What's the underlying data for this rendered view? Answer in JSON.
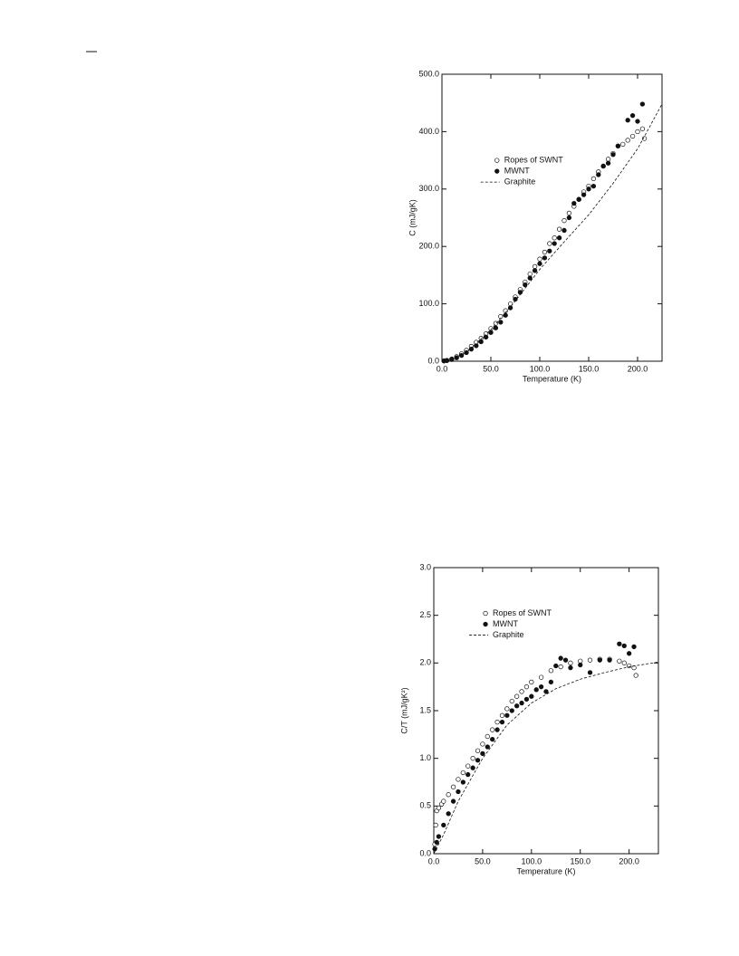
{
  "chart_data": [
    {
      "type": "scatter",
      "xlabel": "Temperature (K)",
      "ylabel": "C (mJ/gK)",
      "xlim": [
        0,
        225
      ],
      "ylim": [
        0,
        500
      ],
      "xticks": [
        {
          "value": 0,
          "label": "0.0"
        },
        {
          "value": 50,
          "label": "50.0"
        },
        {
          "value": 100,
          "label": "100.0"
        },
        {
          "value": 150,
          "label": "150.0"
        },
        {
          "value": 200,
          "label": "200.0"
        }
      ],
      "yticks": [
        {
          "value": 0,
          "label": "0.0"
        },
        {
          "value": 100,
          "label": "100.0"
        },
        {
          "value": 200,
          "label": "200.0"
        },
        {
          "value": 300,
          "label": "300.0"
        },
        {
          "value": 400,
          "label": "400.0"
        },
        {
          "value": 500,
          "label": "500.0"
        }
      ],
      "legend": "upper left",
      "series": [
        {
          "name": "Ropes of SWNT",
          "color": "#111111",
          "marker": "open-circle",
          "x": [
            2,
            5,
            10,
            15,
            20,
            25,
            30,
            35,
            40,
            45,
            50,
            55,
            60,
            65,
            70,
            75,
            80,
            85,
            90,
            95,
            100,
            105,
            110,
            115,
            120,
            125,
            130,
            135,
            140,
            145,
            150,
            155,
            160,
            165,
            170,
            175,
            180,
            185,
            190,
            195,
            200,
            205,
            207
          ],
          "values": [
            0.5,
            1.5,
            4,
            8,
            13,
            19,
            26,
            33,
            40,
            48,
            57,
            66,
            78,
            88,
            100,
            112,
            125,
            138,
            152,
            165,
            178,
            190,
            205,
            215,
            230,
            245,
            258,
            270,
            282,
            295,
            305,
            318,
            330,
            340,
            352,
            362,
            375,
            378,
            385,
            392,
            400,
            405,
            388
          ]
        },
        {
          "name": "MWNT",
          "color": "#111111",
          "marker": "filled-circle",
          "x": [
            2,
            5,
            10,
            15,
            20,
            25,
            30,
            35,
            40,
            45,
            50,
            55,
            60,
            65,
            70,
            75,
            80,
            85,
            90,
            95,
            100,
            105,
            110,
            115,
            120,
            125,
            130,
            135,
            140,
            145,
            150,
            155,
            160,
            165,
            170,
            175,
            180,
            190,
            195,
            200,
            205
          ],
          "values": [
            0.5,
            1,
            3,
            6,
            10,
            15,
            21,
            27,
            34,
            42,
            50,
            58,
            68,
            80,
            93,
            108,
            120,
            133,
            145,
            158,
            170,
            180,
            192,
            205,
            215,
            228,
            250,
            275,
            282,
            290,
            300,
            305,
            325,
            340,
            345,
            360,
            375,
            420,
            428,
            418,
            448
          ]
        },
        {
          "name": "Graphite",
          "color": "#111111",
          "marker": "dashed-line",
          "x": [
            0,
            25,
            50,
            75,
            100,
            125,
            150,
            175,
            200,
            225
          ],
          "values": [
            0,
            15,
            55,
            105,
            160,
            208,
            255,
            310,
            370,
            448
          ]
        }
      ]
    },
    {
      "type": "scatter",
      "xlabel": "Temperature (K)",
      "ylabel": "C/T (mJ/gK²)",
      "xlim": [
        0,
        230
      ],
      "ylim": [
        0,
        3
      ],
      "xticks": [
        {
          "value": 0,
          "label": "0.0"
        },
        {
          "value": 50,
          "label": "50.0"
        },
        {
          "value": 100,
          "label": "100.0"
        },
        {
          "value": 150,
          "label": "150.0"
        },
        {
          "value": 200,
          "label": "200.0"
        }
      ],
      "yticks": [
        {
          "value": 0,
          "label": "0.0"
        },
        0.5,
        {
          "value": 1,
          "label": "1.0"
        },
        1.5,
        {
          "value": 2,
          "label": "2.0"
        },
        2.5,
        {
          "value": 3,
          "label": "3.0"
        }
      ],
      "legend": "upper left",
      "series": [
        {
          "name": "Ropes of SWNT",
          "color": "#111111",
          "marker": "open-circle",
          "x": [
            1,
            2,
            3,
            5,
            8,
            10,
            15,
            20,
            25,
            30,
            35,
            40,
            45,
            50,
            55,
            60,
            65,
            70,
            75,
            80,
            85,
            90,
            95,
            100,
            110,
            120,
            130,
            140,
            150,
            160,
            170,
            180,
            190,
            195,
            200,
            205,
            207
          ],
          "values": [
            0.1,
            0.3,
            0.45,
            0.48,
            0.52,
            0.55,
            0.62,
            0.7,
            0.78,
            0.85,
            0.92,
            1.0,
            1.08,
            1.15,
            1.23,
            1.3,
            1.38,
            1.45,
            1.52,
            1.6,
            1.65,
            1.7,
            1.75,
            1.8,
            1.85,
            1.92,
            1.96,
            2.0,
            2.02,
            2.03,
            2.04,
            2.04,
            2.02,
            2.0,
            1.97,
            1.95,
            1.87
          ]
        },
        {
          "name": "MWNT",
          "color": "#111111",
          "marker": "filled-circle",
          "x": [
            1,
            3,
            5,
            10,
            15,
            20,
            25,
            30,
            35,
            40,
            45,
            50,
            55,
            60,
            65,
            70,
            75,
            80,
            85,
            90,
            95,
            100,
            105,
            110,
            115,
            120,
            125,
            130,
            135,
            140,
            150,
            160,
            170,
            180,
            190,
            195,
            200,
            205
          ],
          "values": [
            0.05,
            0.12,
            0.18,
            0.3,
            0.42,
            0.55,
            0.65,
            0.75,
            0.83,
            0.9,
            0.98,
            1.05,
            1.12,
            1.2,
            1.3,
            1.38,
            1.45,
            1.5,
            1.55,
            1.58,
            1.62,
            1.65,
            1.72,
            1.75,
            1.7,
            1.8,
            1.97,
            2.05,
            2.03,
            1.95,
            1.98,
            1.9,
            2.03,
            2.03,
            2.2,
            2.18,
            2.1,
            2.17
          ]
        },
        {
          "name": "Graphite",
          "color": "#111111",
          "marker": "dashed-line",
          "x": [
            0,
            10,
            25,
            50,
            75,
            100,
            125,
            150,
            175,
            200,
            230
          ],
          "values": [
            0,
            0.2,
            0.55,
            1.0,
            1.35,
            1.58,
            1.73,
            1.83,
            1.9,
            1.96,
            2.01
          ]
        }
      ]
    }
  ]
}
